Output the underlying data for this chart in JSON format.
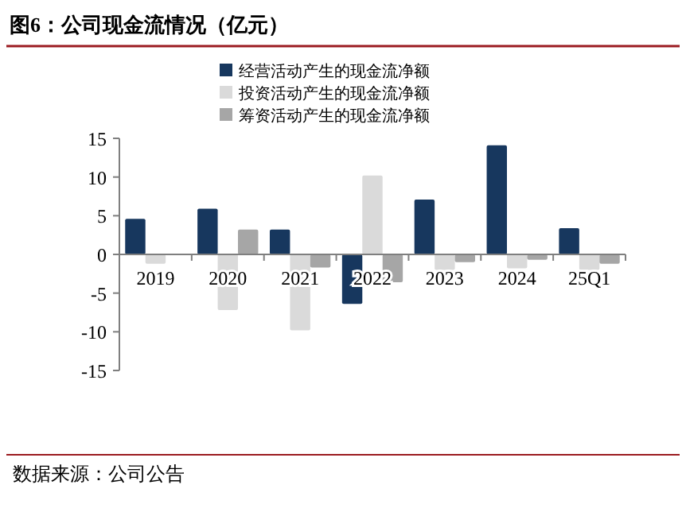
{
  "chart_data": {
    "type": "bar",
    "title": "图6：公司现金流情况（亿元）",
    "categories": [
      "2019",
      "2020",
      "2021",
      "2022",
      "2023",
      "2024",
      "25Q1"
    ],
    "series": [
      {
        "name": "经营活动产生的现金流净额",
        "color": "#17375e",
        "values": [
          4.6,
          5.9,
          3.2,
          -6.4,
          7.1,
          14.1,
          3.4
        ]
      },
      {
        "name": "投资活动产生的现金流净额",
        "color": "#dadada",
        "values": [
          -1.2,
          -7.2,
          -9.8,
          10.2,
          -2.0,
          -1.8,
          -2.0
        ]
      },
      {
        "name": "筹资活动产生的现金流净额",
        "color": "#a6a6a6",
        "values": [
          0.1,
          3.2,
          -1.7,
          -3.6,
          -1.0,
          -0.7,
          -1.2
        ]
      }
    ],
    "ylim": [
      -15,
      15
    ],
    "yticks": [
      -15,
      -10,
      -5,
      0,
      5,
      10,
      15
    ],
    "legend": "top",
    "grid": false,
    "annotations": [
      "数据来源：公司公告"
    ]
  }
}
